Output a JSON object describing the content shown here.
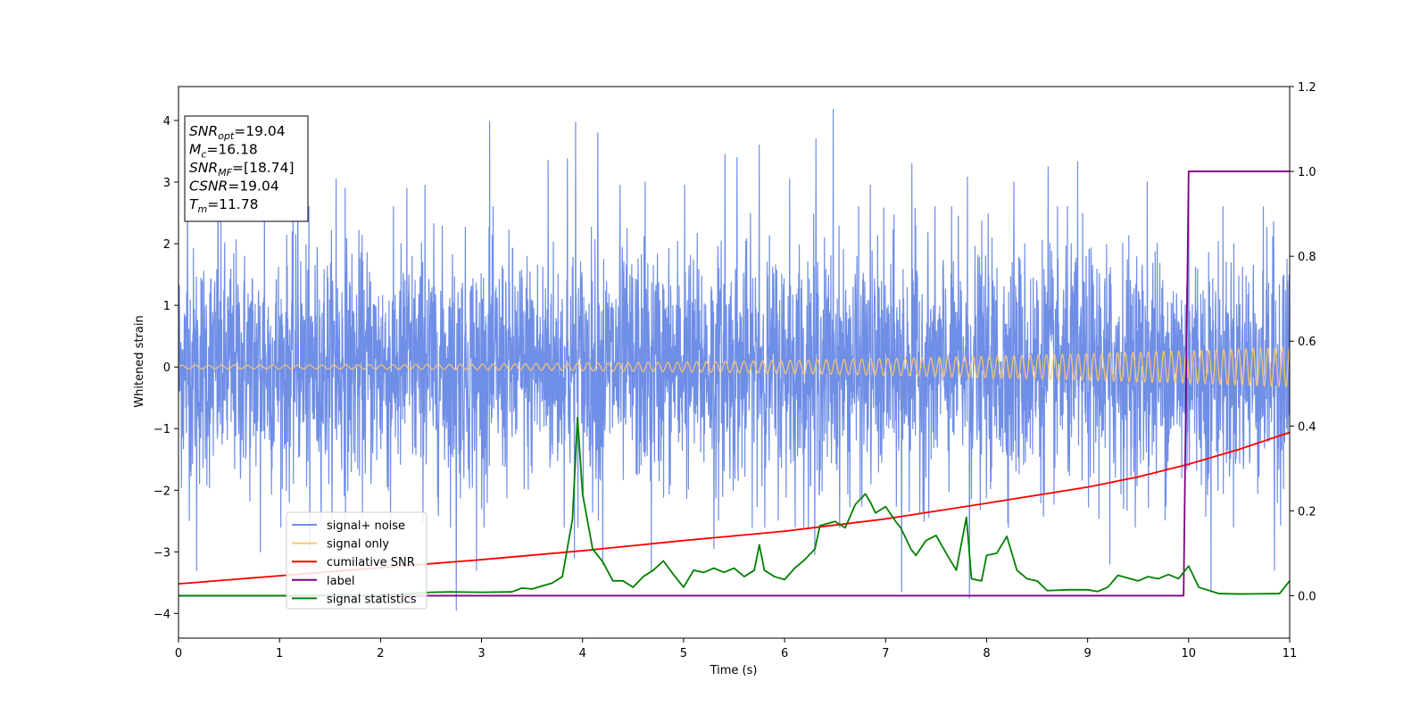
{
  "chart_data": {
    "type": "line",
    "xlabel": "Time (s)",
    "ylabel": "Whitened strain",
    "xlim": [
      0,
      11
    ],
    "ylim": [
      -4.4,
      4.55
    ],
    "y2lim": [
      -0.1,
      1.2
    ],
    "x_ticks": [
      "0",
      "1",
      "2",
      "3",
      "4",
      "5",
      "6",
      "7",
      "8",
      "9",
      "10",
      "11"
    ],
    "y_ticks": [
      "−4",
      "−3",
      "−2",
      "−1",
      "0",
      "1",
      "2",
      "3",
      "4"
    ],
    "y2_ticks": [
      "0.0",
      "0.2",
      "0.4",
      "0.6",
      "0.8",
      "1.0",
      "1.2"
    ],
    "grid": false,
    "legend_position": "lower-left",
    "annotation_box": {
      "lines": [
        {
          "symbol": "SNR",
          "sub": "opt",
          "value": "=19.04"
        },
        {
          "symbol": "M",
          "sub": "c",
          "value": "=16.18"
        },
        {
          "symbol": "SNR",
          "sub": "MF",
          "value": "=[18.74]"
        },
        {
          "symbol": "CSNR",
          "sub": "",
          "value": "=19.04"
        },
        {
          "symbol": "T",
          "sub": "m",
          "value": "=11.78"
        }
      ]
    },
    "series": [
      {
        "name": "signal+ noise",
        "color": "#6f8ee6",
        "axis": "left",
        "kind": "noise",
        "description_values": {
          "std": 1.0,
          "typical_range": [
            -2.5,
            2.5
          ],
          "extremes": [
            -3.95,
            4.18
          ]
        },
        "spikes_high": [
          [
            0.09,
            3.05
          ],
          [
            0.39,
            3.1
          ],
          [
            0.85,
            2.95
          ],
          [
            1.18,
            2.95
          ],
          [
            1.56,
            3.05
          ],
          [
            1.65,
            2.9
          ],
          [
            2.26,
            2.9
          ],
          [
            2.44,
            2.95
          ],
          [
            3.08,
            3.98
          ],
          [
            3.66,
            3.35
          ],
          [
            3.85,
            3.38
          ],
          [
            3.93,
            3.97
          ],
          [
            4.15,
            3.8
          ],
          [
            4.37,
            2.95
          ],
          [
            4.62,
            3.0
          ],
          [
            5.01,
            2.95
          ],
          [
            5.41,
            3.45
          ],
          [
            5.53,
            3.4
          ],
          [
            5.75,
            3.6
          ],
          [
            6.05,
            3.05
          ],
          [
            6.31,
            3.7
          ],
          [
            6.48,
            4.18
          ],
          [
            6.85,
            2.95
          ],
          [
            7.26,
            3.3
          ],
          [
            7.81,
            3.08
          ],
          [
            8.27,
            3.0
          ],
          [
            8.61,
            3.25
          ],
          [
            8.9,
            3.33
          ],
          [
            9.59,
            3.0
          ],
          [
            10.0,
            2.95
          ]
        ],
        "spikes_low": [
          [
            0.18,
            -3.3
          ],
          [
            0.81,
            -3.0
          ],
          [
            1.3,
            -2.95
          ],
          [
            2.1,
            -2.6
          ],
          [
            2.75,
            -3.95
          ],
          [
            2.95,
            -3.3
          ],
          [
            3.92,
            -3.1
          ],
          [
            4.2,
            -3.2
          ],
          [
            4.68,
            -3.3
          ],
          [
            5.3,
            -2.95
          ],
          [
            6.3,
            -3.05
          ],
          [
            7.16,
            -3.65
          ],
          [
            7.83,
            -3.75
          ],
          [
            9.22,
            -3.2
          ],
          [
            10.22,
            -3.65
          ],
          [
            10.85,
            -3.3
          ]
        ]
      },
      {
        "name": "signal only",
        "color": "#ffc76a",
        "axis": "left",
        "kind": "chirp",
        "amplitude_start": 0.03,
        "amplitude_end": 0.32,
        "frequency_start_hz": 7.5,
        "frequency_end_hz": 14
      },
      {
        "name": "cumilative SNR",
        "color": "#ff0000",
        "axis": "right",
        "x": [
          0,
          1,
          2,
          3,
          4,
          5,
          6,
          7,
          8,
          9,
          9.5,
          10,
          10.5,
          11
        ],
        "values": [
          0.028,
          0.047,
          0.066,
          0.085,
          0.106,
          0.13,
          0.152,
          0.181,
          0.218,
          0.256,
          0.28,
          0.31,
          0.345,
          0.385
        ]
      },
      {
        "name": "label",
        "color": "#800080",
        "axis": "right",
        "x": [
          0,
          9.95,
          10.0,
          11
        ],
        "values": [
          0.0,
          0.0,
          1.0,
          1.0
        ]
      },
      {
        "name": "signal statistics",
        "color": "#008000",
        "axis": "right",
        "x": [
          0,
          0.5,
          1.0,
          1.5,
          2.0,
          2.3,
          2.5,
          2.7,
          3.0,
          3.3,
          3.4,
          3.5,
          3.7,
          3.8,
          3.9,
          3.95,
          4.0,
          4.1,
          4.2,
          4.3,
          4.4,
          4.5,
          4.6,
          4.7,
          4.8,
          4.9,
          5.0,
          5.1,
          5.2,
          5.3,
          5.4,
          5.5,
          5.6,
          5.7,
          5.75,
          5.8,
          5.9,
          6.0,
          6.1,
          6.2,
          6.3,
          6.35,
          6.5,
          6.6,
          6.7,
          6.8,
          6.85,
          6.9,
          7.0,
          7.1,
          7.15,
          7.25,
          7.3,
          7.4,
          7.5,
          7.6,
          7.7,
          7.8,
          7.85,
          7.95,
          8.0,
          8.1,
          8.2,
          8.3,
          8.4,
          8.5,
          8.6,
          8.8,
          9.0,
          9.1,
          9.2,
          9.3,
          9.5,
          9.6,
          9.7,
          9.8,
          9.9,
          10.0,
          10.1,
          10.3,
          10.5,
          10.9,
          11.0
        ],
        "values": [
          0.0,
          0.0,
          0.0,
          0.001,
          0.001,
          0.005,
          0.008,
          0.009,
          0.008,
          0.009,
          0.018,
          0.016,
          0.03,
          0.045,
          0.18,
          0.42,
          0.24,
          0.11,
          0.08,
          0.035,
          0.035,
          0.02,
          0.045,
          0.06,
          0.082,
          0.05,
          0.02,
          0.06,
          0.055,
          0.065,
          0.055,
          0.065,
          0.045,
          0.06,
          0.12,
          0.06,
          0.045,
          0.038,
          0.065,
          0.085,
          0.11,
          0.165,
          0.175,
          0.16,
          0.215,
          0.24,
          0.22,
          0.195,
          0.21,
          0.175,
          0.16,
          0.11,
          0.095,
          0.13,
          0.142,
          0.1,
          0.06,
          0.185,
          0.04,
          0.035,
          0.095,
          0.1,
          0.14,
          0.06,
          0.04,
          0.035,
          0.012,
          0.014,
          0.014,
          0.01,
          0.02,
          0.048,
          0.035,
          0.045,
          0.04,
          0.05,
          0.04,
          0.07,
          0.02,
          0.005,
          0.004,
          0.005,
          0.035
        ]
      }
    ]
  }
}
